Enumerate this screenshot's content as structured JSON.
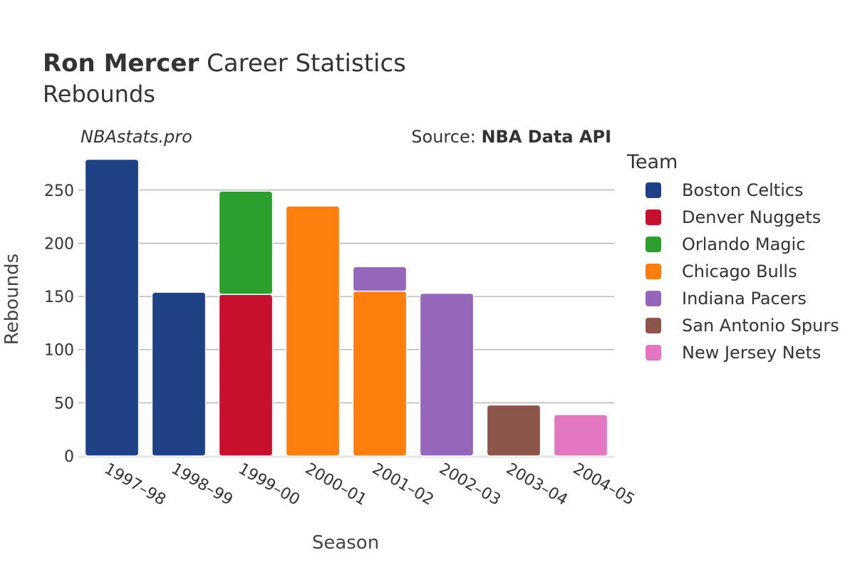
{
  "title": {
    "name": "Ron Mercer",
    "rest": "Career Statistics",
    "subtitle": "Rebounds"
  },
  "watermark": "NBAstats.pro",
  "source": {
    "prefix": "Source: ",
    "name": "NBA Data API"
  },
  "chart_data": {
    "type": "bar",
    "stacked": true,
    "xlabel": "Season",
    "ylabel": "Rebounds",
    "ylim": [
      0,
      280
    ],
    "yticks": [
      0,
      50,
      100,
      150,
      200,
      250
    ],
    "grid": true,
    "legend_title": "Team",
    "legend_position": "right",
    "categories": [
      "1997–98",
      "1998–99",
      "1999–00",
      "2000–01",
      "2001–02",
      "2002–03",
      "2003–04",
      "2004–05"
    ],
    "series": [
      {
        "name": "Boston Celtics",
        "color": "#1f4287",
        "values": [
          279,
          154,
          0,
          0,
          0,
          0,
          0,
          0
        ]
      },
      {
        "name": "Denver Nuggets",
        "color": "#c8102e",
        "values": [
          0,
          0,
          152,
          0,
          0,
          0,
          0,
          0
        ]
      },
      {
        "name": "Orlando Magic",
        "color": "#2ca02c",
        "values": [
          0,
          0,
          97,
          0,
          0,
          0,
          0,
          0
        ]
      },
      {
        "name": "Chicago Bulls",
        "color": "#ff7f0e",
        "values": [
          0,
          0,
          0,
          235,
          155,
          0,
          0,
          0
        ]
      },
      {
        "name": "Indiana Pacers",
        "color": "#9467bd",
        "values": [
          0,
          0,
          0,
          0,
          23,
          153,
          0,
          0
        ]
      },
      {
        "name": "San Antonio Spurs",
        "color": "#8c564b",
        "values": [
          0,
          0,
          0,
          0,
          0,
          0,
          48,
          0
        ]
      },
      {
        "name": "New Jersey Nets",
        "color": "#e377c2",
        "values": [
          0,
          0,
          0,
          0,
          0,
          0,
          0,
          39
        ]
      }
    ]
  }
}
